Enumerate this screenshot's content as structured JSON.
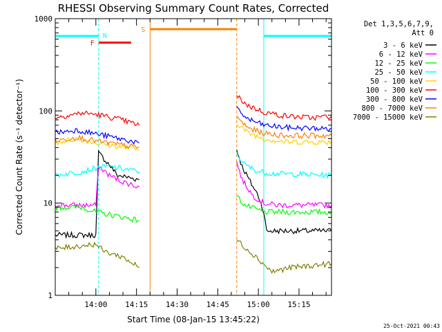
{
  "chart_data": {
    "type": "line",
    "title": "RHESSI Observing Summary Count Rates, Corrected",
    "xlabel": "Start Time (08-Jan-15 13:45:22)",
    "ylabel": "Corrected Count Rate (s⁻¹ detector⁻¹)",
    "yscale": "log",
    "xlim": [
      "13:45",
      "15:27"
    ],
    "ylim": [
      1,
      1000
    ],
    "x_ticks": [
      "14:00",
      "14:15",
      "14:30",
      "14:45",
      "15:00",
      "15:15"
    ],
    "y_ticks": [
      "1",
      "10",
      "100",
      "1000"
    ],
    "grid": false,
    "legend_position": "right",
    "legend_header": [
      "Det 1,3,5,6,7,9,",
      "Att 0"
    ],
    "timestamp": "25-Oct-2021 00:43",
    "series": [
      {
        "name": "3 - 6 keV",
        "color": "#000000",
        "segments": [
          {
            "x": [
              "13:45",
              "14:00",
              "14:01",
              "14:05",
              "14:08",
              "14:12",
              "14:16"
            ],
            "y": [
              4.5,
              4.5,
              35,
              26,
              20,
              19,
              18
            ]
          },
          {
            "x": [
              "14:52",
              "14:54",
              "14:57",
              "15:00",
              "15:02",
              "15:03",
              "15:27"
            ],
            "y": [
              38,
              25,
              17,
              12,
              8,
              5,
              5
            ]
          }
        ]
      },
      {
        "name": "6 - 12 keV",
        "color": "#ff00ff",
        "segments": [
          {
            "x": [
              "13:45",
              "14:00",
              "14:01",
              "14:05",
              "14:10",
              "14:16"
            ],
            "y": [
              9.5,
              9.5,
              25,
              20,
              17,
              15
            ]
          },
          {
            "x": [
              "14:52",
              "14:54",
              "14:58",
              "15:02",
              "15:07",
              "15:27"
            ],
            "y": [
              28,
              18,
              12,
              10,
              9.5,
              9.5
            ]
          }
        ]
      },
      {
        "name": "12 - 25 keV",
        "color": "#00ff00",
        "segments": [
          {
            "x": [
              "13:45",
              "13:55",
              "14:00",
              "14:16"
            ],
            "y": [
              9,
              9,
              8,
              6.5
            ]
          },
          {
            "x": [
              "14:52",
              "14:55",
              "15:02",
              "15:27"
            ],
            "y": [
              12,
              9.5,
              8,
              8
            ]
          }
        ]
      },
      {
        "name": "25 - 50 keV",
        "color": "#00ffff",
        "segments": [
          {
            "x": [
              "13:45",
              "13:55",
              "14:00",
              "14:05",
              "14:16"
            ],
            "y": [
              20,
              22,
              24,
              25,
              22
            ]
          },
          {
            "x": [
              "14:52",
              "14:55",
              "15:00",
              "15:05",
              "15:27"
            ],
            "y": [
              34,
              26,
              22,
              21,
              20
            ]
          }
        ]
      },
      {
        "name": "50 - 100 keV",
        "color": "#ffd000",
        "segments": [
          {
            "x": [
              "13:45",
              "13:53",
              "14:02",
              "14:16"
            ],
            "y": [
              45,
              50,
              44,
              38
            ]
          },
          {
            "x": [
              "14:52",
              "14:56",
              "15:02",
              "15:10",
              "15:27"
            ],
            "y": [
              75,
              58,
              50,
              46,
              46
            ]
          }
        ]
      },
      {
        "name": "100 - 300 keV",
        "color": "#ff0000",
        "segments": [
          {
            "x": [
              "13:45",
              "13:55",
              "14:00",
              "14:08",
              "14:16"
            ],
            "y": [
              85,
              95,
              92,
              82,
              70
            ]
          },
          {
            "x": [
              "14:52",
              "14:56",
              "15:02",
              "15:10",
              "15:20",
              "15:27"
            ],
            "y": [
              145,
              115,
              97,
              88,
              84,
              88
            ]
          }
        ]
      },
      {
        "name": "300 - 800 keV",
        "color": "#0000ff",
        "segments": [
          {
            "x": [
              "13:45",
              "13:53",
              "14:02",
              "14:16"
            ],
            "y": [
              58,
              62,
              55,
              45
            ]
          },
          {
            "x": [
              "14:52",
              "14:56",
              "15:02",
              "15:10",
              "15:27"
            ],
            "y": [
              105,
              82,
              70,
              66,
              64
            ]
          }
        ]
      },
      {
        "name": "800 - 7000 keV",
        "color": "#ff7f00",
        "segments": [
          {
            "x": [
              "13:45",
              "13:53",
              "14:02",
              "14:16"
            ],
            "y": [
              47,
              52,
              46,
              40
            ]
          },
          {
            "x": [
              "14:52",
              "14:56",
              "15:02",
              "15:10",
              "15:27"
            ],
            "y": [
              85,
              66,
              57,
              54,
              54
            ]
          }
        ]
      },
      {
        "name": "7000 - 15000 keV",
        "color": "#7f7f00",
        "segments": [
          {
            "x": [
              "13:45",
              "14:00",
              "14:03",
              "14:10",
              "14:16"
            ],
            "y": [
              3.2,
              3.6,
              3,
              2.6,
              2
            ]
          },
          {
            "x": [
              "14:52",
              "14:58",
              "15:05",
              "15:12",
              "15:27"
            ],
            "y": [
              4,
              2.8,
              1.8,
              2,
              2.2
            ]
          }
        ]
      }
    ],
    "annotations": {
      "night": {
        "label": "N",
        "color": "#00ffff",
        "level": 650,
        "intervals": [
          [
            "13:45",
            "14:01"
          ],
          [
            "15:02",
            "15:27"
          ]
        ],
        "dashed_markers": [
          "14:01",
          "15:27"
        ],
        "solid_markers": [
          "13:45",
          "15:02"
        ]
      },
      "flare": {
        "label": "F",
        "color": "#ff0000",
        "level": 550,
        "interval": [
          "14:01",
          "14:13"
        ]
      },
      "saa": {
        "label": "S",
        "color": "#ff7f00",
        "level": 770,
        "interval": [
          "14:20",
          "14:52"
        ],
        "solid_markers": [
          "14:20"
        ],
        "dashed_markers": [
          "14:52"
        ]
      }
    }
  }
}
